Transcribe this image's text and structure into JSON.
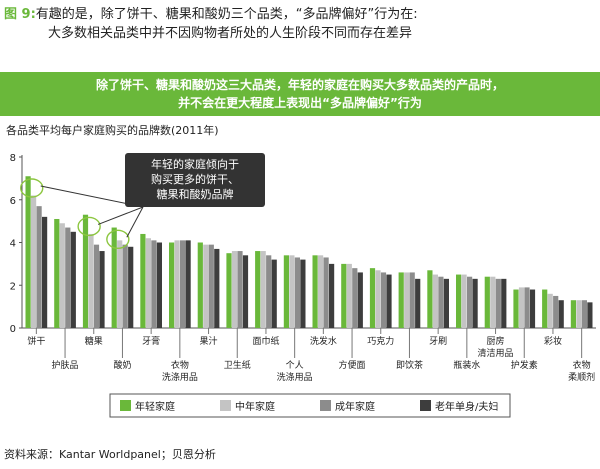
{
  "header": {
    "figure_label": "图 9:",
    "title_line1": "有趣的是，除了饼干、糖果和酸奶三个品类，“多品牌偏好”行为在:",
    "title_line2": "大多数相关品类中并不因购物者所处的人生阶段不同而存在差异"
  },
  "banner": {
    "line1": "除了饼干、糖果和酸奶这三大品类，年轻的家庭在购买大多数品类的产品时，",
    "line2": "并不会在更大程度上表现出“多品牌偏好”行为"
  },
  "source": "资料来源：Kantar Worldpanel；贝恩分析",
  "chart_data": {
    "type": "bar",
    "title": "各品类平均每户家庭购买的品牌数(2011年)",
    "ylim": [
      0,
      8
    ],
    "yticks": [
      0,
      2,
      4,
      6,
      8
    ],
    "categories": [
      "饼干",
      "护肤品",
      "糖果",
      "酸奶",
      "牙膏",
      "衣物洗涤用品",
      "果汁",
      "卫生纸",
      "面巾纸",
      "个人洗涤用品",
      "洗发水",
      "方便面",
      "巧克力",
      "即饮茶",
      "牙刷",
      "瓶装水",
      "厨房清洁用品",
      "护发素",
      "彩妆",
      "衣物柔顺剂"
    ],
    "category_labels": [
      [
        "饼干"
      ],
      [
        "护肤品"
      ],
      [
        "糖果"
      ],
      [
        "酸奶"
      ],
      [
        "牙膏"
      ],
      [
        "衣物",
        "洗涤用品"
      ],
      [
        "果汁"
      ],
      [
        "卫生纸"
      ],
      [
        "面巾纸"
      ],
      [
        "个人",
        "洗涤用品"
      ],
      [
        "洗发水"
      ],
      [
        "方便面"
      ],
      [
        "巧克力"
      ],
      [
        "即饮茶"
      ],
      [
        "牙刷"
      ],
      [
        "瓶装水"
      ],
      [
        "厨房",
        "清洁用品"
      ],
      [
        "护发素"
      ],
      [
        "彩妆"
      ],
      [
        "衣物",
        "柔顺剂"
      ]
    ],
    "series": [
      {
        "name": "年轻家庭",
        "color": "#6ab83a",
        "values": [
          7.1,
          5.1,
          5.3,
          4.7,
          4.4,
          4.0,
          4.0,
          3.5,
          3.6,
          3.4,
          3.4,
          3.0,
          2.8,
          2.6,
          2.7,
          2.5,
          2.4,
          1.8,
          1.8,
          1.3
        ]
      },
      {
        "name": "中年家庭",
        "color": "#c4c4c4",
        "values": [
          6.2,
          4.9,
          4.4,
          4.1,
          4.2,
          4.1,
          3.9,
          3.6,
          3.6,
          3.4,
          3.4,
          3.0,
          2.7,
          2.6,
          2.5,
          2.5,
          2.4,
          1.9,
          1.6,
          1.3
        ]
      },
      {
        "name": "成年家庭",
        "color": "#8c8c8c",
        "values": [
          5.7,
          4.7,
          3.9,
          3.9,
          4.1,
          4.1,
          3.9,
          3.6,
          3.4,
          3.3,
          3.3,
          2.8,
          2.6,
          2.6,
          2.4,
          2.4,
          2.3,
          1.9,
          1.5,
          1.3
        ]
      },
      {
        "name": "老年单身/夫妇",
        "color": "#3d3d3d",
        "values": [
          5.2,
          4.5,
          3.6,
          3.8,
          4.0,
          4.1,
          3.7,
          3.4,
          3.2,
          3.2,
          3.0,
          2.6,
          2.5,
          2.3,
          2.3,
          2.3,
          2.3,
          1.8,
          1.3,
          1.2
        ]
      }
    ],
    "annotation": {
      "lines": [
        "年轻的家庭倾向于",
        "购买更多的饼干、",
        "糖果和酸奶品牌"
      ],
      "highlighted_categories": [
        "饼干",
        "糖果",
        "酸奶"
      ]
    },
    "legend_position": "bottom",
    "grid": false
  }
}
